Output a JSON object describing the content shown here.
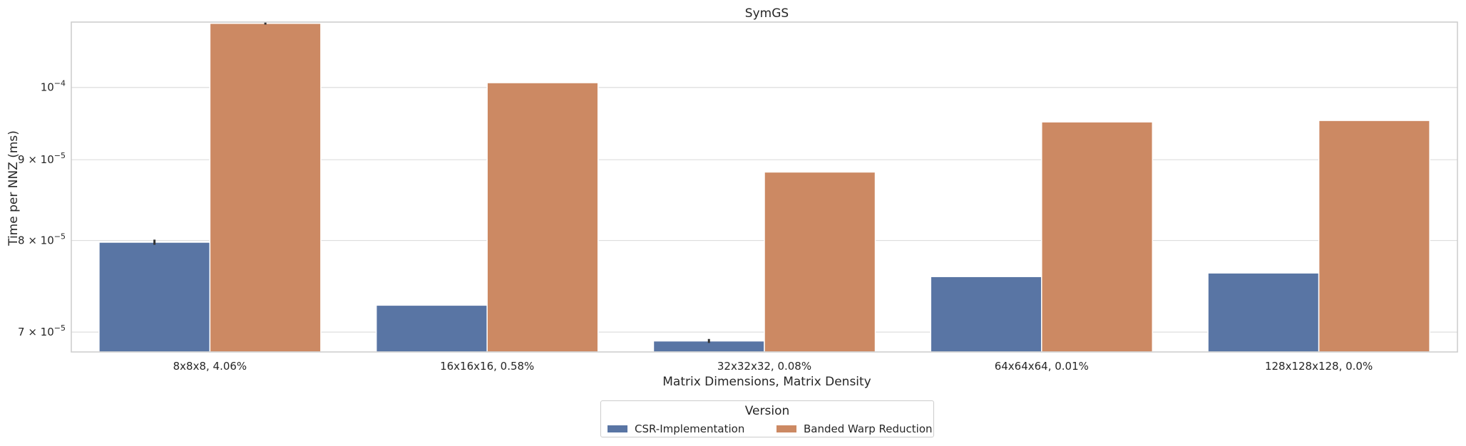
{
  "chart_data": {
    "type": "bar",
    "title": "SymGS",
    "xlabel": "Matrix Dimensions, Matrix Density",
    "ylabel": "Time per NNZ (ms)",
    "yscale": "log",
    "ylim": [
      6.8e-05,
      0.00011
    ],
    "grid": "horizontal",
    "categories": [
      "8x8x8, 4.06%",
      "16x16x16, 0.58%",
      "32x32x32, 0.08%",
      "64x64x64, 0.01%",
      "128x128x128, 0.0%"
    ],
    "series": [
      {
        "name": "CSR-Implementation",
        "color": "#5975a4",
        "values": [
          7.98e-05,
          7.28e-05,
          6.91e-05,
          7.59e-05,
          7.63e-05
        ],
        "error": [
          3e-07,
          0,
          2e-07,
          0,
          0
        ]
      },
      {
        "name": "Banded Warp Reduction",
        "color": "#cc8963",
        "values": [
          0.0001098,
          0.0001007,
          8.84e-05,
          9.51e-05,
          9.53e-05
        ],
        "error": [
          2e-07,
          0,
          0,
          0,
          0
        ]
      }
    ],
    "y_ticks": [
      {
        "value": 7e-05,
        "mantissa": "7",
        "exp": "−5"
      },
      {
        "value": 8e-05,
        "mantissa": "8",
        "exp": "−5"
      },
      {
        "value": 9e-05,
        "mantissa": "9",
        "exp": "−5"
      },
      {
        "value": 0.0001,
        "mantissa": "",
        "exp": "−4"
      }
    ],
    "legend": {
      "title": "Version",
      "placement": "bottom-center"
    }
  }
}
